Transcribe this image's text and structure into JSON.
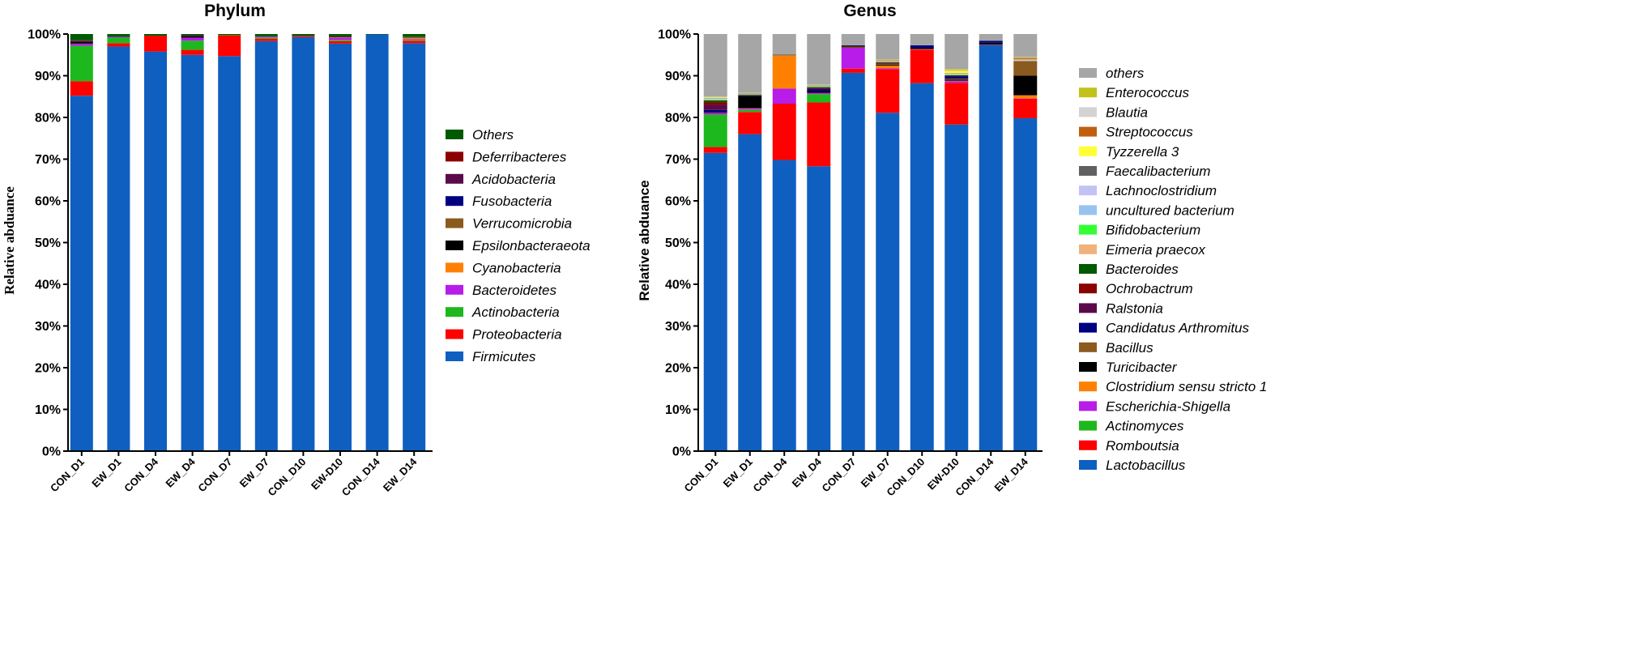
{
  "chart_data": [
    {
      "type": "bar",
      "stacked": true,
      "title": "Phylum",
      "xlabel": "",
      "ylabel": "Relative abduance",
      "ylim": [
        0,
        100
      ],
      "yticks": [
        "0%",
        "10%",
        "20%",
        "30%",
        "40%",
        "50%",
        "60%",
        "70%",
        "80%",
        "90%",
        "100%"
      ],
      "legend_position": "right",
      "categories": [
        "CON_D1",
        "EW_D1",
        "CON_D4",
        "EW_D4",
        "CON_D7",
        "EW_D7",
        "CON_D10",
        "EW-D10",
        "CON_D14",
        "EW_D14"
      ],
      "series": [
        {
          "name": "Firmicutes",
          "color": "#0F5FC0",
          "values": [
            85.2,
            97.0,
            95.8,
            95.0,
            94.7,
            98.3,
            99.3,
            97.7,
            99.9,
            97.8
          ]
        },
        {
          "name": "Proteobacteria",
          "color": "#FF0000",
          "values": [
            3.5,
            0.8,
            3.8,
            1.2,
            5.0,
            0.6,
            0.3,
            0.6,
            0.0,
            0.6
          ]
        },
        {
          "name": "Actinobacteria",
          "color": "#1DB81D",
          "values": [
            8.5,
            1.3,
            0.0,
            2.2,
            0.1,
            0.3,
            0.0,
            0.3,
            0.0,
            0.2
          ]
        },
        {
          "name": "Bacteroidetes",
          "color": "#B71CE8",
          "values": [
            0.5,
            0.2,
            0.0,
            0.7,
            0.0,
            0.2,
            0.0,
            0.5,
            0.0,
            0.2
          ]
        },
        {
          "name": "Cyanobacteria",
          "color": "#FF8000",
          "values": [
            0.0,
            0.0,
            0.0,
            0.0,
            0.0,
            0.0,
            0.0,
            0.1,
            0.0,
            0.2
          ]
        },
        {
          "name": "Epsilonbacteraeota",
          "color": "#000000",
          "values": [
            0.5,
            0.0,
            0.0,
            0.3,
            0.0,
            0.0,
            0.0,
            0.1,
            0.0,
            0.0
          ]
        },
        {
          "name": "Verrucomicrobia",
          "color": "#8B5A1E",
          "values": [
            0.0,
            0.0,
            0.0,
            0.0,
            0.0,
            0.0,
            0.0,
            0.0,
            0.0,
            0.3
          ]
        },
        {
          "name": "Fusobacteria",
          "color": "#000080",
          "values": [
            0.0,
            0.0,
            0.0,
            0.0,
            0.0,
            0.0,
            0.0,
            0.0,
            0.0,
            0.0
          ]
        },
        {
          "name": "Acidobacteria",
          "color": "#5A0A4A",
          "values": [
            0.2,
            0.0,
            0.0,
            0.3,
            0.0,
            0.1,
            0.0,
            0.2,
            0.0,
            0.0
          ]
        },
        {
          "name": "Deferribacteres",
          "color": "#8B0000",
          "values": [
            0.1,
            0.0,
            0.0,
            0.0,
            0.0,
            0.0,
            0.0,
            0.0,
            0.0,
            0.0
          ]
        },
        {
          "name": "Others",
          "color": "#005A00",
          "values": [
            1.5,
            0.7,
            0.4,
            0.3,
            0.2,
            0.5,
            0.4,
            0.5,
            0.1,
            0.7
          ]
        }
      ]
    },
    {
      "type": "bar",
      "stacked": true,
      "title": "Genus",
      "xlabel": "",
      "ylabel": "Relative abduance",
      "ylim": [
        0,
        100
      ],
      "yticks": [
        "0%",
        "10%",
        "20%",
        "30%",
        "40%",
        "50%",
        "60%",
        "70%",
        "80%",
        "90%",
        "100%"
      ],
      "legend_position": "right",
      "categories": [
        "CON_D1",
        "EW_D1",
        "CON_D4",
        "EW_D4",
        "CON_D7",
        "EW_D7",
        "CON_D10",
        "EW-D10",
        "CON_D14",
        "EW_D14"
      ],
      "series": [
        {
          "name": "Lactobacillus",
          "color": "#0F5FC0",
          "values": [
            71.5,
            76.0,
            69.8,
            68.3,
            90.7,
            81.2,
            88.2,
            78.3,
            97.4,
            79.9
          ]
        },
        {
          "name": "Romboutsia",
          "color": "#FF0000",
          "values": [
            1.4,
            5.3,
            13.5,
            15.3,
            1.0,
            10.5,
            8.0,
            10.0,
            0.1,
            4.7
          ]
        },
        {
          "name": "Actinomyces",
          "color": "#1DB81D",
          "values": [
            7.8,
            0.5,
            0.0,
            2.0,
            0.0,
            0.0,
            0.0,
            0.0,
            0.0,
            0.0
          ]
        },
        {
          "name": "Escherichia-Shigella",
          "color": "#B71CE8",
          "values": [
            0.4,
            0.3,
            3.6,
            0.3,
            5.0,
            0.2,
            0.1,
            0.4,
            0.0,
            0.1
          ]
        },
        {
          "name": "Clostridium sensu stricto 1",
          "color": "#FF8000",
          "values": [
            0.0,
            0.1,
            8.0,
            0.0,
            0.1,
            0.6,
            0.1,
            0.1,
            0.0,
            0.7
          ]
        },
        {
          "name": "Turicibacter",
          "color": "#000000",
          "values": [
            0.2,
            3.0,
            0.0,
            0.4,
            0.2,
            0.2,
            0.3,
            0.3,
            0.4,
            4.7
          ]
        },
        {
          "name": "Bacillus",
          "color": "#8B5A1E",
          "values": [
            0.0,
            0.0,
            0.0,
            0.0,
            0.1,
            0.3,
            0.0,
            0.2,
            0.0,
            3.5
          ]
        },
        {
          "name": "Candidatus Arthromitus",
          "color": "#000080",
          "values": [
            0.5,
            0.1,
            0.0,
            0.4,
            0.2,
            0.0,
            0.6,
            0.5,
            0.5,
            0.0
          ]
        },
        {
          "name": "Ralstonia",
          "color": "#5A0A4A",
          "values": [
            1.2,
            0.1,
            0.1,
            0.3,
            0.0,
            0.2,
            0.0,
            0.2,
            0.0,
            0.0
          ]
        },
        {
          "name": "Ochrobactrum",
          "color": "#8B0000",
          "values": [
            0.6,
            0.0,
            0.0,
            0.1,
            0.0,
            0.0,
            0.0,
            0.0,
            0.0,
            0.0
          ]
        },
        {
          "name": "Bacteroides",
          "color": "#005A00",
          "values": [
            0.5,
            0.1,
            0.1,
            0.2,
            0.0,
            0.1,
            0.0,
            0.1,
            0.0,
            0.0
          ]
        },
        {
          "name": "Eimeria praecox",
          "color": "#F0B27A",
          "values": [
            0.2,
            0.1,
            0.0,
            0.1,
            0.0,
            0.1,
            0.0,
            0.1,
            0.0,
            0.1
          ]
        },
        {
          "name": "Bifidobacterium",
          "color": "#33FF33",
          "values": [
            0.1,
            0.1,
            0.0,
            0.1,
            0.0,
            0.0,
            0.0,
            0.1,
            0.0,
            0.0
          ]
        },
        {
          "name": "uncultured bacterium",
          "color": "#99C2F0",
          "values": [
            0.1,
            0.0,
            0.0,
            0.1,
            0.0,
            0.1,
            0.0,
            0.1,
            0.0,
            0.1
          ]
        },
        {
          "name": "Lachnoclostridium",
          "color": "#C2C2F5",
          "values": [
            0.1,
            0.0,
            0.0,
            0.0,
            0.0,
            0.0,
            0.0,
            0.1,
            0.0,
            0.1
          ]
        },
        {
          "name": "Faecalibacterium",
          "color": "#606060",
          "values": [
            0.1,
            0.0,
            0.0,
            0.1,
            0.0,
            0.1,
            0.0,
            0.1,
            0.0,
            0.1
          ]
        },
        {
          "name": "Tyzzerella 3",
          "color": "#FFFF33",
          "values": [
            0.1,
            0.0,
            0.0,
            0.0,
            0.0,
            0.1,
            0.0,
            0.6,
            0.0,
            0.1
          ]
        },
        {
          "name": "Streptococcus",
          "color": "#C0600F",
          "values": [
            0.0,
            0.1,
            0.0,
            0.0,
            0.0,
            0.1,
            0.0,
            0.1,
            0.0,
            0.3
          ]
        },
        {
          "name": "Blautia",
          "color": "#D3D3D3",
          "values": [
            0.1,
            0.1,
            0.0,
            0.1,
            0.0,
            0.1,
            0.0,
            0.1,
            0.0,
            0.1
          ]
        },
        {
          "name": "Enterococcus",
          "color": "#C2C21A",
          "values": [
            0.1,
            0.0,
            0.0,
            0.1,
            0.0,
            0.1,
            0.0,
            0.2,
            0.0,
            0.1
          ]
        },
        {
          "name": "others",
          "color": "#A6A6A6",
          "values": [
            15.0,
            14.1,
            4.9,
            12.1,
            2.7,
            6.1,
            2.7,
            8.4,
            1.6,
            5.5
          ]
        }
      ]
    }
  ]
}
